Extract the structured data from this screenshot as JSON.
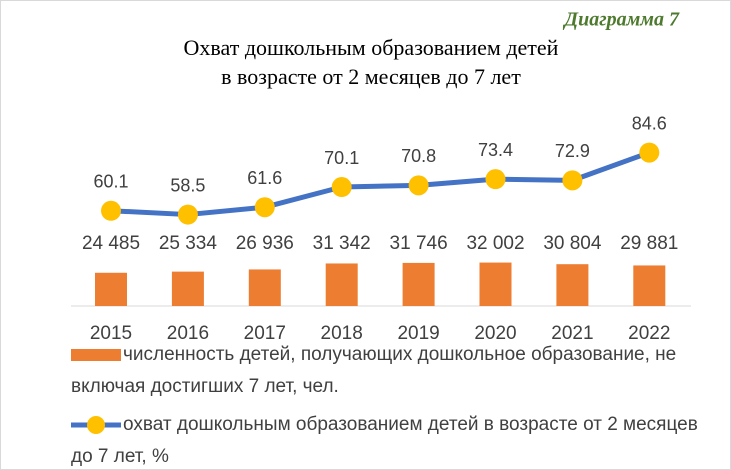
{
  "chart_data": {
    "type": "bar+line",
    "annotation": "Диаграмма 7",
    "title": [
      "Охват дошкольным образованием  детей",
      "в возрасте от 2 месяцев до 7 лет"
    ],
    "categories": [
      "2015",
      "2016",
      "2017",
      "2018",
      "2019",
      "2020",
      "2021",
      "2022"
    ],
    "series": [
      {
        "name": "численность детей, получающих дошкольное образование, не включая достигших 7 лет, чел.",
        "type": "bar",
        "color": "#ED7D31",
        "values": [
          24485,
          25334,
          26936,
          31342,
          31746,
          32002,
          30804,
          29881
        ],
        "value_labels": [
          "24 485",
          "25 334",
          "26 936",
          "31 342",
          "31 746",
          "32 002",
          "30 804",
          "29 881"
        ]
      },
      {
        "name": "охват дошкольным образованием детей в возрасте от 2 месяцев до 7 лет, %",
        "type": "line",
        "axis": "y2",
        "color": "#4472C4",
        "marker_color": "#FFC000",
        "values": [
          60.1,
          58.5,
          61.6,
          70.1,
          70.8,
          73.4,
          72.9,
          84.6
        ]
      }
    ],
    "ylim": [
      0,
      140000
    ],
    "y2lim": [
      20,
      100
    ],
    "grid": false
  }
}
